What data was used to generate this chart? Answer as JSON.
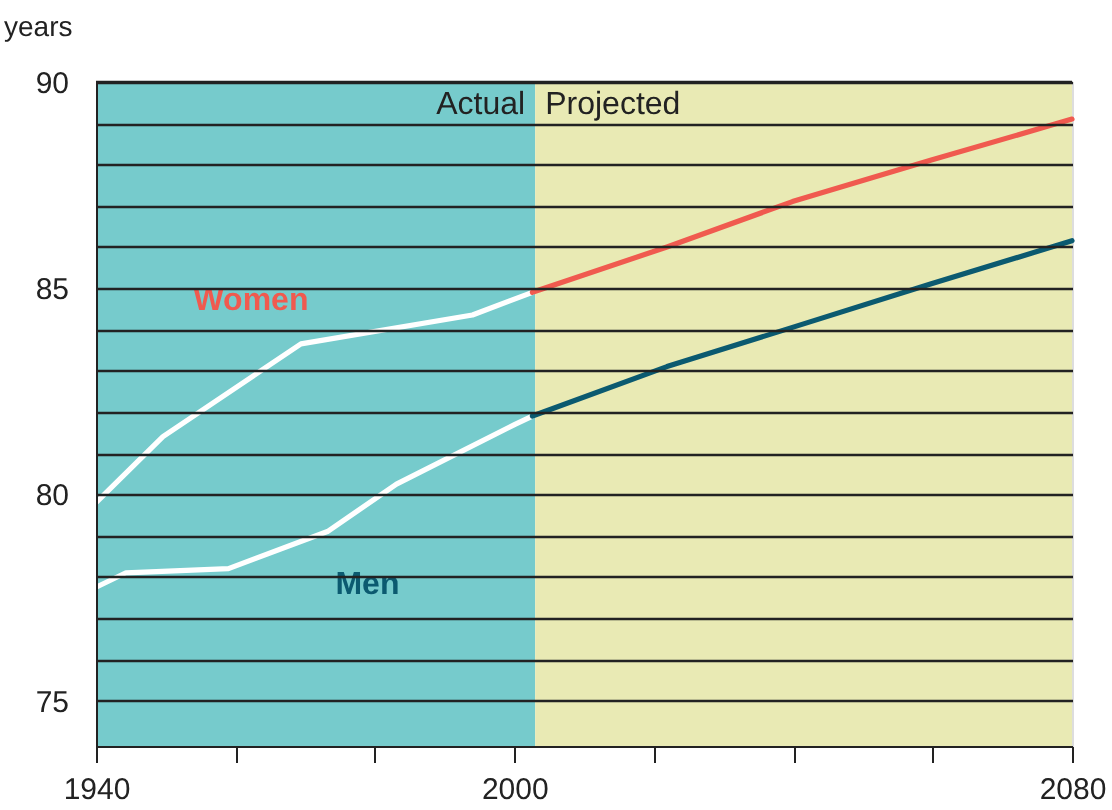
{
  "chart_data": {
    "type": "line",
    "ylabel": "years",
    "xlim": [
      1940,
      2080
    ],
    "xticks": [
      1940,
      {
        "value": 1960,
        "label": null
      },
      {
        "value": 1980,
        "label": null
      },
      2000,
      {
        "value": 2020,
        "label": null
      },
      {
        "value": 2040,
        "label": null
      },
      {
        "value": 2060,
        "label": null
      },
      2080
    ],
    "ylim": [
      73.9,
      90
    ],
    "yticks": [
      75,
      {
        "value": 76,
        "label": null
      },
      {
        "value": 77,
        "label": null
      },
      {
        "value": 78,
        "label": null
      },
      {
        "value": 79,
        "label": null
      },
      80,
      {
        "value": 81,
        "label": null
      },
      {
        "value": 82,
        "label": null
      },
      {
        "value": 83,
        "label": null
      },
      {
        "value": 84,
        "label": null
      },
      85,
      {
        "value": 86,
        "label": null
      },
      {
        "value": 87,
        "label": null
      },
      {
        "value": 88,
        "label": null
      },
      {
        "value": 89,
        "label": null
      },
      90
    ],
    "grid": "y",
    "bands": [
      {
        "axis": "x",
        "from": 1940,
        "to": 2003,
        "label": "Actual",
        "color": "#76cbcc"
      },
      {
        "axis": "x",
        "from": 2003,
        "to": 2080,
        "label": "Projected",
        "color": "#e9eab4"
      }
    ],
    "series": [
      {
        "color": "#ffffff",
        "x": [
          1940,
          1949.6,
          1969.4,
          1994,
          2002.6
        ],
        "values": [
          79.8,
          81.4,
          83.65,
          84.35,
          84.9
        ]
      },
      {
        "color": "#f05a4f",
        "x": [
          2002.6,
          2021.9,
          2039.9,
          2059.7,
          2080
        ],
        "values": [
          84.9,
          86.0,
          87.1,
          88.1,
          89.1
        ]
      },
      {
        "color": "#ffffff",
        "x": [
          1940,
          1944.3,
          1959,
          1973.2,
          1983.1,
          2000.1,
          2002.6
        ],
        "values": [
          77.75,
          78.1,
          78.2,
          79.1,
          80.25,
          81.7,
          81.9
        ]
      },
      {
        "color": "#0b5a70",
        "x": [
          2002.6,
          2021.9,
          2039.9,
          2059.7,
          2080
        ],
        "values": [
          81.9,
          83.1,
          84.05,
          85.1,
          86.15
        ]
      }
    ],
    "annotations": [
      "Women",
      "Men"
    ]
  }
}
